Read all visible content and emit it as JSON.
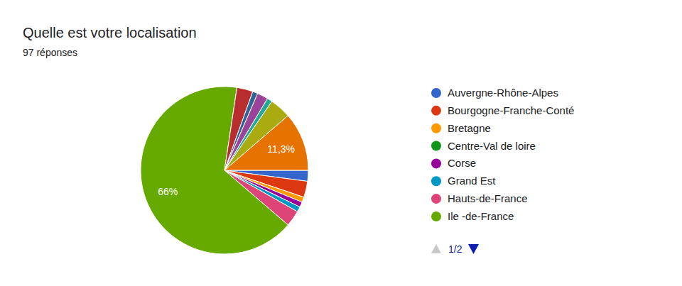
{
  "chart_data": {
    "type": "pie",
    "title": "Quelle est votre localisation",
    "subtitle": "97 réponses",
    "categories": [
      "Auvergne-Rhône-Alpes",
      "Bourgogne-Franche-Conté",
      "Bretagne",
      "Centre-Val de loire",
      "Corse",
      "Grand Est",
      "Hauts-de-France",
      "Ile -de-France",
      null,
      null,
      null,
      null,
      null,
      null
    ],
    "values": [
      2.1,
      3.1,
      1.0,
      0,
      1.0,
      1.0,
      3.1,
      66,
      3.1,
      1.0,
      2.1,
      1.0,
      4.1,
      11.3
    ],
    "value_labels": [
      null,
      null,
      null,
      null,
      null,
      null,
      null,
      "66%",
      null,
      null,
      null,
      null,
      null,
      "11,3%"
    ],
    "colors": [
      "#3366cc",
      "#dc3912",
      "#ff9900",
      "#109618",
      "#990099",
      "#0099c6",
      "#dd4477",
      "#66aa00",
      "#b82e2e",
      "#316395",
      "#994499",
      "#22aa99",
      "#aaaa11",
      "#e67300"
    ],
    "legend": "right",
    "legend_page": "1/2"
  }
}
